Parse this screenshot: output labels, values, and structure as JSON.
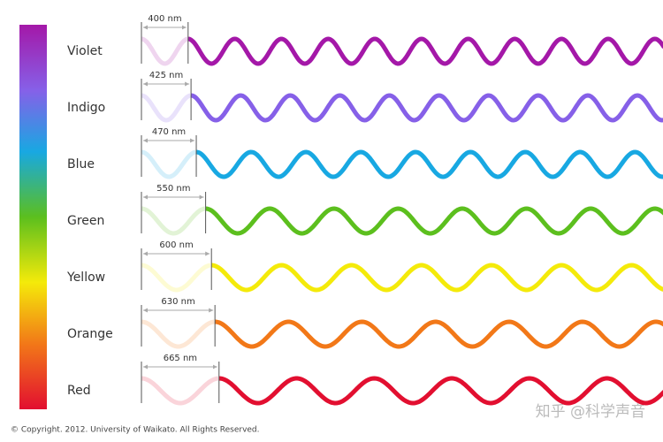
{
  "spectrum_rows": [
    {
      "name": "Violet",
      "wavelength": {
        "value": 400,
        "label": "400 nm"
      },
      "color": "#a418a8"
    },
    {
      "name": "Indigo",
      "wavelength": {
        "value": 425,
        "label": "425 nm"
      },
      "color": "#8660e8"
    },
    {
      "name": "Blue",
      "wavelength": {
        "value": 470,
        "label": "470 nm"
      },
      "color": "#18a8e2"
    },
    {
      "name": "Green",
      "wavelength": {
        "value": 550,
        "label": "550 nm"
      },
      "color": "#5cbf1e"
    },
    {
      "name": "Yellow",
      "wavelength": {
        "value": 600,
        "label": "600 nm"
      },
      "color": "#f4ea0a"
    },
    {
      "name": "Orange",
      "wavelength": {
        "value": 630,
        "label": "630 nm"
      },
      "color": "#f27818"
    },
    {
      "name": "Red",
      "wavelength": {
        "value": 665,
        "label": "665 nm"
      },
      "color": "#e20f30"
    }
  ],
  "copyright": "© Copyright. 2012. University of Waikato. All Rights Reserved.",
  "watermark": "知乎 @科学声音"
}
